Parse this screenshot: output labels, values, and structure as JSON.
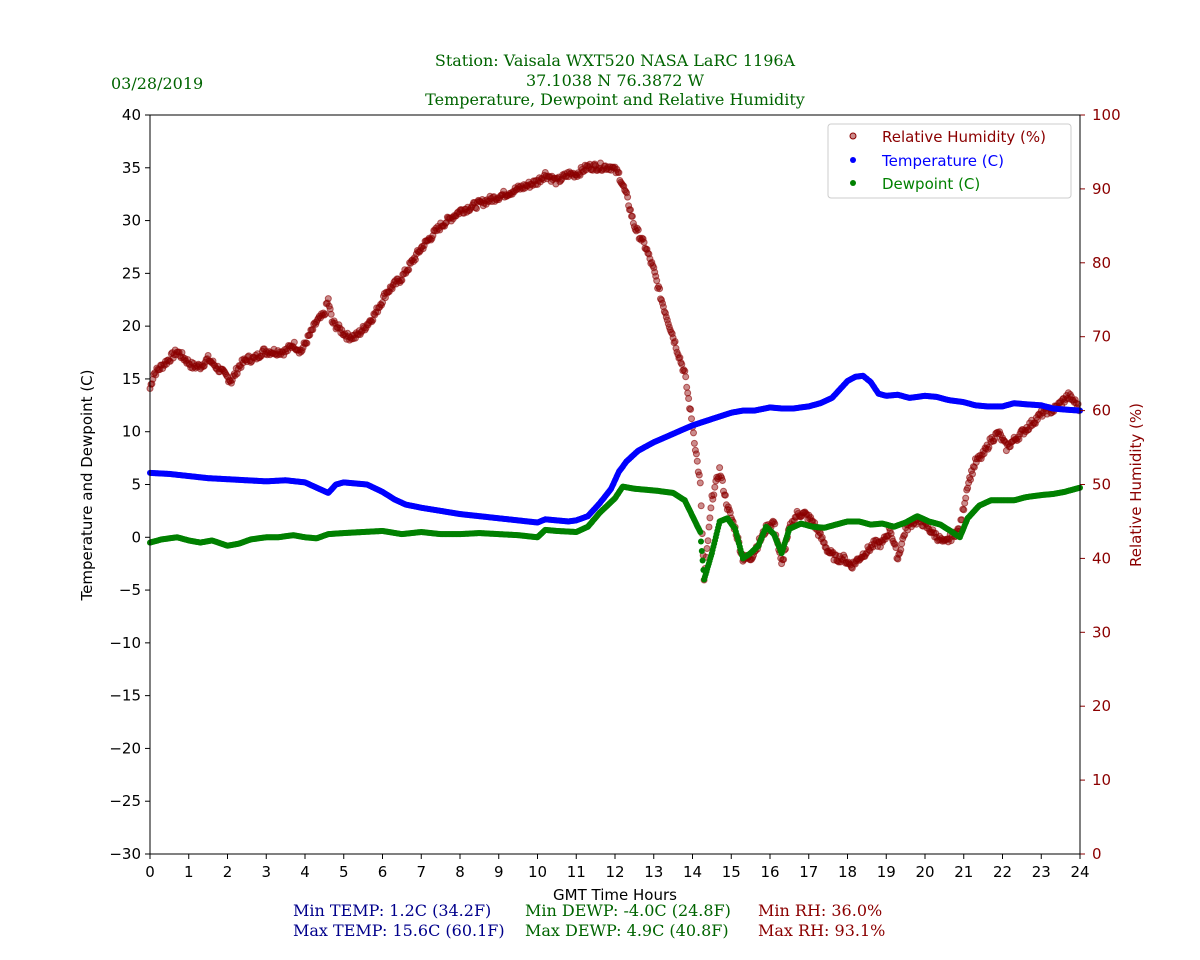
{
  "header": {
    "date": "03/28/2019",
    "station_line": "Station:  Vaisala WXT520  NASA LaRC 1196A",
    "coords_line": "37.1038 N 76.3872 W",
    "subtitle_line": "Temperature, Dewpoint and Relative Humidity"
  },
  "colors": {
    "title": "#006400",
    "rh": "#8b0000",
    "temp": "#0000ff",
    "dewp": "#008000",
    "stats_temp": "#00008b",
    "stats_dewp": "#006400",
    "stats_rh": "#8b0000"
  },
  "chart_data": {
    "type": "scatter",
    "title": "Temperature, Dewpoint and Relative Humidity",
    "xlabel": "GMT Time Hours",
    "ylabel": "Temperature and Dewpoint (C)",
    "y2label": "Relative Humidity (%)",
    "xlim": [
      0,
      24
    ],
    "ylim": [
      -30,
      40
    ],
    "y2lim": [
      0,
      100
    ],
    "xticks": [
      "0",
      "1",
      "2",
      "3",
      "4",
      "5",
      "6",
      "7",
      "8",
      "9",
      "10",
      "11",
      "12",
      "13",
      "14",
      "15",
      "16",
      "17",
      "18",
      "19",
      "20",
      "21",
      "22",
      "23",
      "24"
    ],
    "yticks": [
      "40",
      "35",
      "30",
      "25",
      "20",
      "15",
      "10",
      "5",
      "0",
      "−5",
      "−10",
      "−15",
      "−20",
      "−25",
      "−30"
    ],
    "y2ticks": [
      "100",
      "90",
      "80",
      "70",
      "60",
      "50",
      "40",
      "30",
      "20",
      "10",
      "0"
    ],
    "legend_position": "top-right",
    "series": [
      {
        "name": "Relative Humidity (%)",
        "axis": "right",
        "x": [
          0,
          0.1,
          0.3,
          0.5,
          0.7,
          0.9,
          1.1,
          1.3,
          1.5,
          1.7,
          1.9,
          2.1,
          2.3,
          2.5,
          2.7,
          2.9,
          3.1,
          3.3,
          3.5,
          3.7,
          3.9,
          4.1,
          4.3,
          4.5,
          4.6,
          4.7,
          4.9,
          5.1,
          5.3,
          5.5,
          5.8,
          6.1,
          6.5,
          7,
          7.5,
          8,
          8.5,
          9,
          9.5,
          10,
          10.2,
          10.5,
          10.8,
          11,
          11.3,
          11.6,
          11.9,
          12.1,
          12.3,
          12.5,
          12.8,
          13,
          13.2,
          13.5,
          13.8,
          14,
          14.2,
          14.3,
          14.5,
          14.7,
          14.9,
          15.1,
          15.3,
          15.5,
          15.7,
          15.9,
          16.1,
          16.3,
          16.5,
          16.7,
          16.9,
          17.1,
          17.3,
          17.5,
          17.7,
          17.9,
          18.1,
          18.3,
          18.5,
          18.7,
          18.9,
          19.1,
          19.3,
          19.5,
          19.7,
          19.9,
          20.1,
          20.3,
          20.5,
          20.7,
          20.9,
          21.1,
          21.3,
          21.5,
          21.7,
          21.9,
          22.1,
          22.3,
          22.5,
          22.7,
          22.9,
          23.1,
          23.3,
          23.5,
          23.7,
          23.9,
          24
        ],
        "values": [
          63,
          65,
          66,
          67,
          68,
          67,
          66,
          66,
          67,
          66,
          65,
          64,
          66,
          67,
          67,
          68,
          68,
          68,
          68,
          69,
          68,
          70,
          72,
          73,
          75,
          72,
          71,
          70,
          70,
          71,
          73,
          76,
          78,
          82,
          85,
          87,
          88,
          89,
          90,
          91,
          92,
          91,
          92,
          92,
          93,
          93,
          93,
          92,
          89,
          85,
          82,
          79,
          75,
          70,
          65,
          58,
          50,
          37,
          48,
          52,
          47,
          44,
          40,
          40,
          42,
          44,
          45,
          39,
          44,
          46,
          46,
          45,
          43,
          41,
          40,
          40,
          39,
          40,
          41,
          42,
          42,
          44,
          40,
          44,
          45,
          45,
          44,
          43,
          42,
          43,
          44,
          50,
          53,
          54,
          56,
          57,
          55,
          56,
          57,
          58,
          59,
          60,
          60,
          61,
          62,
          61,
          60
        ]
      },
      {
        "name": "Temperature (C)",
        "axis": "left",
        "x": [
          0,
          0.5,
          1,
          1.5,
          2,
          2.5,
          3,
          3.5,
          4,
          4.3,
          4.6,
          4.8,
          5,
          5.3,
          5.6,
          6,
          6.3,
          6.6,
          7,
          7.5,
          8,
          8.5,
          9,
          9.5,
          10,
          10.2,
          10.5,
          10.8,
          11,
          11.3,
          11.6,
          11.9,
          12.1,
          12.3,
          12.6,
          13,
          13.5,
          14,
          14.5,
          15,
          15.3,
          15.6,
          16,
          16.3,
          16.6,
          17,
          17.3,
          17.6,
          18,
          18.2,
          18.4,
          18.6,
          18.8,
          19,
          19.3,
          19.6,
          20,
          20.3,
          20.6,
          21,
          21.3,
          21.6,
          22,
          22.3,
          22.6,
          23,
          23.3,
          23.6,
          24
        ],
        "values": [
          6.1,
          6.0,
          5.8,
          5.6,
          5.5,
          5.4,
          5.3,
          5.4,
          5.2,
          4.7,
          4.2,
          5.0,
          5.2,
          5.1,
          5.0,
          4.3,
          3.6,
          3.1,
          2.8,
          2.5,
          2.2,
          2.0,
          1.8,
          1.6,
          1.4,
          1.7,
          1.6,
          1.5,
          1.6,
          2.0,
          3.2,
          4.6,
          6.2,
          7.2,
          8.2,
          9.0,
          9.8,
          10.6,
          11.2,
          11.8,
          12.0,
          12.0,
          12.3,
          12.2,
          12.2,
          12.4,
          12.7,
          13.2,
          14.8,
          15.2,
          15.3,
          14.7,
          13.6,
          13.4,
          13.5,
          13.2,
          13.4,
          13.3,
          13.0,
          12.8,
          12.5,
          12.4,
          12.4,
          12.7,
          12.6,
          12.5,
          12.2,
          12.1,
          12.0
        ]
      },
      {
        "name": "Dewpoint (C)",
        "axis": "left",
        "x": [
          0,
          0.3,
          0.7,
          1,
          1.3,
          1.6,
          2,
          2.3,
          2.6,
          3,
          3.3,
          3.7,
          4,
          4.3,
          4.6,
          5,
          5.5,
          6,
          6.5,
          7,
          7.5,
          8,
          8.5,
          9,
          9.5,
          10,
          10.2,
          10.5,
          11,
          11.3,
          11.6,
          12,
          12.2,
          12.5,
          12.8,
          13.1,
          13.5,
          13.8,
          14,
          14.2,
          14.3,
          14.5,
          14.7,
          14.9,
          15.1,
          15.3,
          15.5,
          15.7,
          15.9,
          16.1,
          16.3,
          16.5,
          16.8,
          17.1,
          17.4,
          17.7,
          18,
          18.3,
          18.6,
          18.9,
          19.2,
          19.5,
          19.8,
          20.1,
          20.4,
          20.7,
          20.9,
          21.1,
          21.4,
          21.7,
          22,
          22.3,
          22.6,
          23,
          23.3,
          23.6,
          24
        ],
        "values": [
          -0.5,
          -0.2,
          0,
          -0.3,
          -0.5,
          -0.3,
          -0.8,
          -0.6,
          -0.2,
          0,
          0,
          0.2,
          0,
          -0.1,
          0.3,
          0.4,
          0.5,
          0.6,
          0.3,
          0.5,
          0.3,
          0.3,
          0.4,
          0.3,
          0.2,
          0,
          0.7,
          0.6,
          0.5,
          1.0,
          2.3,
          3.7,
          4.8,
          4.6,
          4.5,
          4.4,
          4.2,
          3.5,
          2.0,
          0.5,
          -4.0,
          -1.5,
          1.5,
          1.8,
          0.8,
          -2.0,
          -1.5,
          -0.8,
          1.0,
          0.3,
          -1.5,
          0.8,
          1.3,
          1.0,
          0.9,
          1.2,
          1.5,
          1.5,
          1.2,
          1.3,
          1.0,
          1.4,
          2.0,
          1.5,
          1.2,
          0.5,
          0,
          1.8,
          3.0,
          3.5,
          3.5,
          3.5,
          3.8,
          4.0,
          4.1,
          4.3,
          4.7
        ]
      }
    ]
  },
  "stats": {
    "min_temp": "Min TEMP: 1.2C (34.2F)",
    "max_temp": "Max TEMP: 15.6C (60.1F)",
    "min_dewp": "Min DEWP: -4.0C (24.8F)",
    "max_dewp": "Max DEWP: 4.9C (40.8F)",
    "min_rh": "Min RH: 36.0%",
    "max_rh": "Max RH: 93.1%"
  }
}
